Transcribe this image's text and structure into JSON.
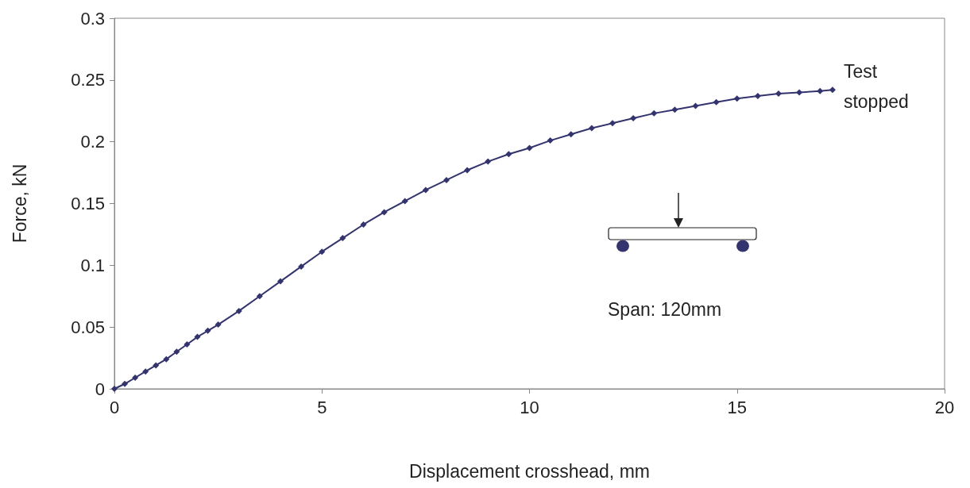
{
  "chart_data": {
    "type": "line",
    "xlabel": "Displacement crosshead, mm",
    "ylabel": "Force, kN",
    "x": [
      0,
      0.25,
      0.5,
      0.75,
      1,
      1.25,
      1.5,
      1.75,
      2,
      2.25,
      2.5,
      3,
      3.5,
      4,
      4.5,
      5,
      5.5,
      6,
      6.5,
      7,
      7.5,
      8,
      8.5,
      9,
      9.5,
      10,
      10.5,
      11,
      11.5,
      12,
      12.5,
      13,
      13.5,
      14,
      14.5,
      15,
      15.5,
      16,
      16.5,
      17,
      17.3
    ],
    "series": [
      {
        "color": "#33336e",
        "values": [
          0,
          0.004,
          0.009,
          0.014,
          0.019,
          0.024,
          0.03,
          0.036,
          0.042,
          0.047,
          0.052,
          0.063,
          0.075,
          0.087,
          0.099,
          0.111,
          0.122,
          0.133,
          0.143,
          0.152,
          0.161,
          0.169,
          0.177,
          0.184,
          0.19,
          0.195,
          0.201,
          0.206,
          0.211,
          0.215,
          0.219,
          0.223,
          0.226,
          0.229,
          0.232,
          0.235,
          0.237,
          0.239,
          0.24,
          0.241,
          0.242
        ]
      }
    ],
    "xlim": [
      0,
      20
    ],
    "xticks": [
      0,
      5,
      10,
      15,
      20
    ],
    "ylim": [
      0,
      0.3
    ],
    "yticks": [
      0,
      0.05,
      0.1,
      0.15,
      0.2,
      0.25,
      0.3
    ],
    "grid": false,
    "marker": "diamond",
    "line_style": "solid",
    "annotations": [
      {
        "text": "Test stopped",
        "x": 17.3,
        "y": 0.242
      },
      "Span: 120mm"
    ]
  }
}
